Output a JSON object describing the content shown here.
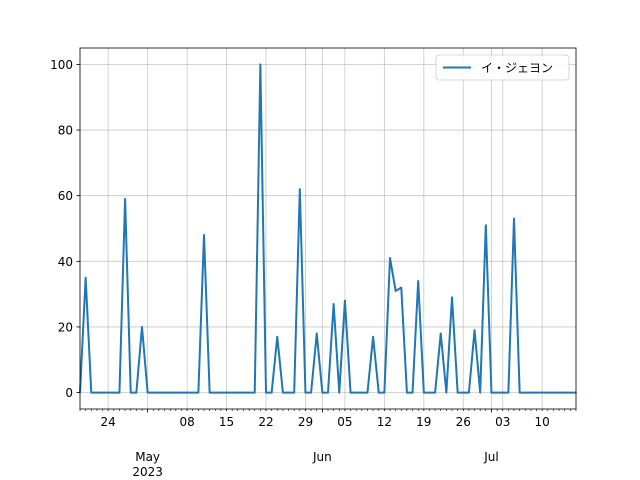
{
  "chart_data": {
    "type": "line",
    "title": "",
    "xlabel": "",
    "ylabel": "",
    "xlim": [
      "2023-04-19",
      "2023-07-16"
    ],
    "ylim": [
      -5,
      105
    ],
    "grid": true,
    "legend_position": "top-right",
    "y_ticks": [
      0,
      20,
      40,
      60,
      80,
      100
    ],
    "x_ticks_major": [
      {
        "date": "2023-05-01",
        "line1": "May",
        "line2": "2023"
      },
      {
        "date": "2023-06-01",
        "line1": "Jun",
        "line2": ""
      },
      {
        "date": "2023-07-01",
        "line1": "Jul",
        "line2": ""
      }
    ],
    "x_ticks_minor": [
      {
        "date": "2023-04-24",
        "label": "24"
      },
      {
        "date": "2023-05-08",
        "label": "08"
      },
      {
        "date": "2023-05-15",
        "label": "15"
      },
      {
        "date": "2023-05-22",
        "label": "22"
      },
      {
        "date": "2023-05-29",
        "label": "29"
      },
      {
        "date": "2023-06-05",
        "label": "05"
      },
      {
        "date": "2023-06-12",
        "label": "12"
      },
      {
        "date": "2023-06-19",
        "label": "19"
      },
      {
        "date": "2023-06-26",
        "label": "26"
      },
      {
        "date": "2023-07-03",
        "label": "03"
      },
      {
        "date": "2023-07-10",
        "label": "10"
      }
    ],
    "series": [
      {
        "name": "イ・ジェヨン",
        "color": "#1f77b4",
        "points": [
          [
            "2023-04-19",
            0
          ],
          [
            "2023-04-20",
            35
          ],
          [
            "2023-04-21",
            0
          ],
          [
            "2023-04-22",
            0
          ],
          [
            "2023-04-23",
            0
          ],
          [
            "2023-04-24",
            0
          ],
          [
            "2023-04-25",
            0
          ],
          [
            "2023-04-26",
            0
          ],
          [
            "2023-04-27",
            59
          ],
          [
            "2023-04-28",
            0
          ],
          [
            "2023-04-29",
            0
          ],
          [
            "2023-04-30",
            20
          ],
          [
            "2023-05-01",
            0
          ],
          [
            "2023-05-02",
            0
          ],
          [
            "2023-05-03",
            0
          ],
          [
            "2023-05-04",
            0
          ],
          [
            "2023-05-05",
            0
          ],
          [
            "2023-05-06",
            0
          ],
          [
            "2023-05-07",
            0
          ],
          [
            "2023-05-08",
            0
          ],
          [
            "2023-05-09",
            0
          ],
          [
            "2023-05-10",
            0
          ],
          [
            "2023-05-11",
            48
          ],
          [
            "2023-05-12",
            0
          ],
          [
            "2023-05-13",
            0
          ],
          [
            "2023-05-14",
            0
          ],
          [
            "2023-05-15",
            0
          ],
          [
            "2023-05-16",
            0
          ],
          [
            "2023-05-17",
            0
          ],
          [
            "2023-05-18",
            0
          ],
          [
            "2023-05-19",
            0
          ],
          [
            "2023-05-20",
            0
          ],
          [
            "2023-05-21",
            100
          ],
          [
            "2023-05-22",
            0
          ],
          [
            "2023-05-23",
            0
          ],
          [
            "2023-05-24",
            17
          ],
          [
            "2023-05-25",
            0
          ],
          [
            "2023-05-26",
            0
          ],
          [
            "2023-05-27",
            0
          ],
          [
            "2023-05-28",
            62
          ],
          [
            "2023-05-29",
            0
          ],
          [
            "2023-05-30",
            0
          ],
          [
            "2023-05-31",
            18
          ],
          [
            "2023-06-01",
            0
          ],
          [
            "2023-06-02",
            0
          ],
          [
            "2023-06-03",
            27
          ],
          [
            "2023-06-04",
            0
          ],
          [
            "2023-06-05",
            28
          ],
          [
            "2023-06-06",
            0
          ],
          [
            "2023-06-07",
            0
          ],
          [
            "2023-06-08",
            0
          ],
          [
            "2023-06-09",
            0
          ],
          [
            "2023-06-10",
            17
          ],
          [
            "2023-06-11",
            0
          ],
          [
            "2023-06-12",
            0
          ],
          [
            "2023-06-13",
            41
          ],
          [
            "2023-06-14",
            31
          ],
          [
            "2023-06-15",
            32
          ],
          [
            "2023-06-16",
            0
          ],
          [
            "2023-06-17",
            0
          ],
          [
            "2023-06-18",
            34
          ],
          [
            "2023-06-19",
            0
          ],
          [
            "2023-06-20",
            0
          ],
          [
            "2023-06-21",
            0
          ],
          [
            "2023-06-22",
            18
          ],
          [
            "2023-06-23",
            0
          ],
          [
            "2023-06-24",
            29
          ],
          [
            "2023-06-25",
            0
          ],
          [
            "2023-06-26",
            0
          ],
          [
            "2023-06-27",
            0
          ],
          [
            "2023-06-28",
            19
          ],
          [
            "2023-06-29",
            0
          ],
          [
            "2023-06-30",
            51
          ],
          [
            "2023-07-01",
            0
          ],
          [
            "2023-07-02",
            0
          ],
          [
            "2023-07-03",
            0
          ],
          [
            "2023-07-04",
            0
          ],
          [
            "2023-07-05",
            53
          ],
          [
            "2023-07-06",
            0
          ],
          [
            "2023-07-07",
            0
          ],
          [
            "2023-07-08",
            0
          ],
          [
            "2023-07-09",
            0
          ],
          [
            "2023-07-10",
            0
          ],
          [
            "2023-07-11",
            0
          ],
          [
            "2023-07-12",
            0
          ],
          [
            "2023-07-13",
            0
          ],
          [
            "2023-07-14",
            0
          ],
          [
            "2023-07-15",
            0
          ],
          [
            "2023-07-16",
            0
          ]
        ]
      }
    ]
  }
}
